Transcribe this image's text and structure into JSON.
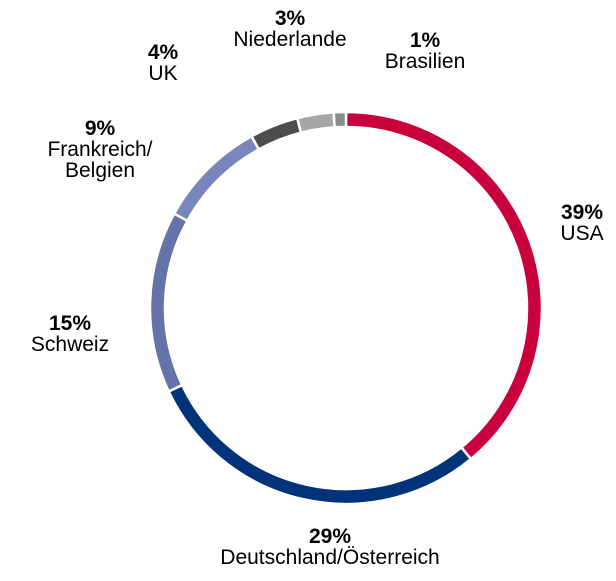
{
  "chart_data": {
    "type": "donut",
    "categories": [
      "USA",
      "Deutschland/Österreich",
      "Schweiz",
      "Frankreich/\nBelgien",
      "UK",
      "Niederlande",
      "Brasilien"
    ],
    "values": [
      39,
      29,
      15,
      9,
      4,
      3,
      1
    ],
    "value_labels": [
      "39%",
      "29%",
      "15%",
      "9%",
      "4%",
      "3%",
      "1%"
    ],
    "colors": [
      "#c8003c",
      "#00337a",
      "#6673a8",
      "#7886bb",
      "#4d4d4d",
      "#a6a6a6",
      "#8c8c8c"
    ]
  }
}
